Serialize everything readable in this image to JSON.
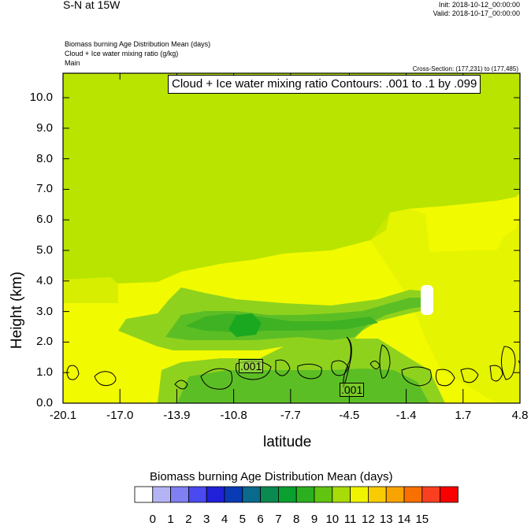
{
  "header": {
    "title": "S-N at 15W",
    "init": "Init: 2018-10-12_00:00:00",
    "valid": "Valid: 2018-10-17_00:00:00",
    "field1": "Biomass burning Age Distribution Mean   (days)",
    "field2": "Cloud + Ice water mixing ratio   (g/kg)",
    "field3": "Main",
    "cross_section": "Cross-Section: (177,231) to (177,485)",
    "contour_label": "Cloud + Ice water mixing ratio Contours: .001 to .1 by .099"
  },
  "colors": {
    "fill_light_green": "#b8e400",
    "fill_yellow": "#f2fa00",
    "fill_yellow_green": "#d8ee00",
    "fill_green": "#8fd21e",
    "fill_mid_green": "#5cbe25",
    "fill_dark_green": "#1aa820"
  },
  "chart_data": {
    "type": "heatmap",
    "title": "",
    "xlabel": "latitude",
    "ylabel": "Height (km)",
    "xlim": [
      -20.1,
      4.8
    ],
    "ylim": [
      0.0,
      10.8
    ],
    "x_ticks": [
      "-20.1",
      "-17.0",
      "-13.9",
      "-10.8",
      "-7.7",
      "-4.5",
      "-1.4",
      "1.7",
      "4.8"
    ],
    "y_ticks": [
      "0.0",
      "1.0",
      "2.0",
      "3.0",
      "4.0",
      "5.0",
      "6.0",
      "7.0",
      "8.0",
      "9.0",
      "10.0"
    ],
    "contour_labels": [
      ".001",
      ".001"
    ],
    "colorbar": {
      "title": "Biomass burning Age Distribution Mean  (days)",
      "ticks": [
        "0",
        "1",
        "2",
        "3",
        "4",
        "5",
        "6",
        "7",
        "8",
        "9",
        "10",
        "11",
        "12",
        "13",
        "14",
        "15"
      ],
      "colors": [
        "#ffffff",
        "#b4b4f5",
        "#8080f2",
        "#4a4af0",
        "#2020d8",
        "#0a3ab4",
        "#0a6a8c",
        "#0a8a50",
        "#0aa030",
        "#2cb020",
        "#60c410",
        "#a8dc08",
        "#f0f400",
        "#f8cc00",
        "#f8a400",
        "#f87000",
        "#f84020",
        "#f80000"
      ]
    }
  }
}
